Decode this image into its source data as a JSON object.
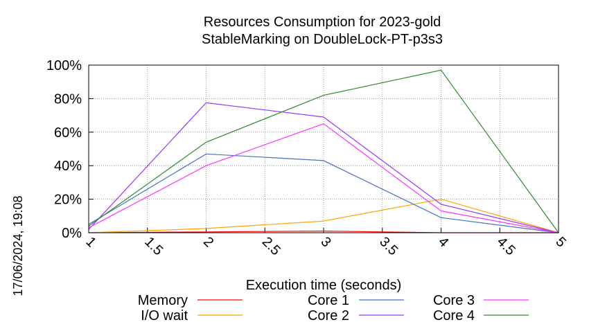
{
  "chart_data": {
    "type": "line",
    "title": "Resources Consumption for 2023-gold",
    "subtitle": "StableMarking on DoubleLock-PT-p3s3",
    "xlabel": "Execution time (seconds)",
    "ylabel": "",
    "side_label": "17/06/2024, 19:08",
    "xlim": [
      1,
      5
    ],
    "ylim": [
      0,
      100
    ],
    "x_ticks": [
      "1",
      "1.5",
      "2",
      "2.5",
      "3",
      "3.5",
      "4",
      "4.5",
      "5"
    ],
    "y_ticks": [
      "0%",
      "20%",
      "40%",
      "60%",
      "80%",
      "100%"
    ],
    "grid": true,
    "legend_position": "bottom",
    "x": [
      1,
      2,
      3,
      4,
      5
    ],
    "series": [
      {
        "name": "Memory",
        "color": "#ff0000",
        "values": [
          0,
          0.5,
          1,
          0,
          0
        ]
      },
      {
        "name": "I/O wait",
        "color": "#ffa500",
        "values": [
          0,
          2.5,
          7,
          20,
          0
        ]
      },
      {
        "name": "Core 1",
        "color": "#4472c4",
        "values": [
          5,
          47,
          43,
          9,
          0
        ]
      },
      {
        "name": "Core 2",
        "color": "#9933ff",
        "values": [
          2,
          77.5,
          69,
          17,
          0
        ]
      },
      {
        "name": "Core 3",
        "color": "#ff33ff",
        "values": [
          3,
          40,
          65,
          13,
          0
        ]
      },
      {
        "name": "Core 4",
        "color": "#2e8b2e",
        "values": [
          4,
          54,
          82,
          97,
          0
        ]
      }
    ]
  }
}
